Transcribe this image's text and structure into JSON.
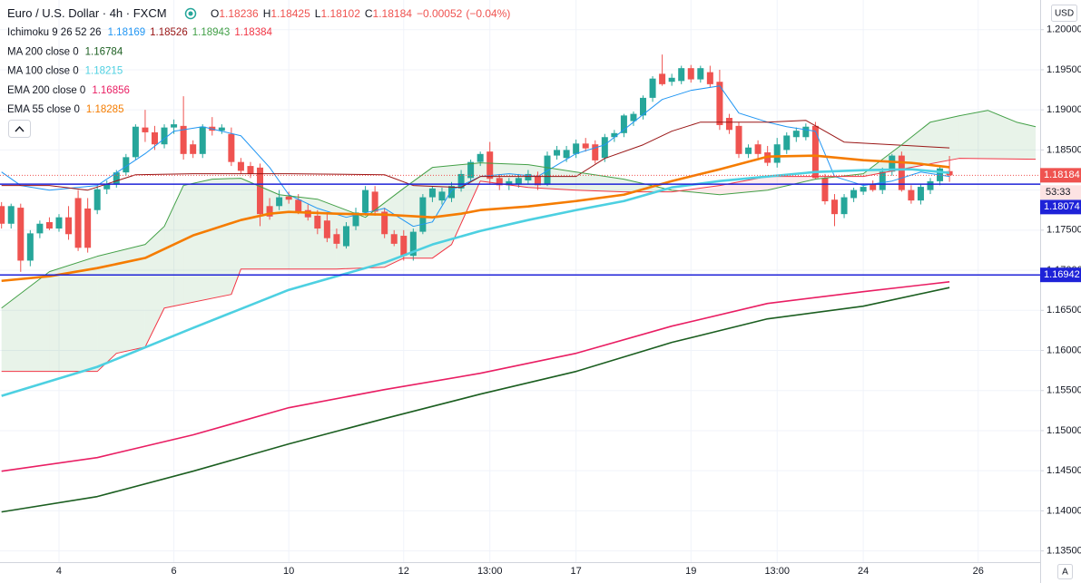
{
  "chart_data": {
    "type": "candlestick",
    "title": "Euro / U.S. Dollar · 4h · FXCM",
    "ohlc_labels": [
      "O",
      "H",
      "L",
      "C"
    ],
    "change": {
      "value": -0.00052,
      "label": "−0.00052"
    },
    "change_percent": {
      "value": -0.04,
      "label": "(−0.04%)"
    },
    "up_color": "#26a69a",
    "down_color": "#ef5350",
    "x": [
      0,
      1,
      2,
      3,
      4,
      5,
      6,
      7,
      8,
      9,
      10,
      11,
      12,
      13,
      14,
      15,
      16,
      17,
      18,
      19,
      20,
      21,
      22,
      23,
      24,
      25,
      26,
      27,
      28,
      29,
      30,
      31,
      32,
      33,
      34,
      35,
      36,
      37,
      38,
      39,
      40,
      41,
      42,
      43,
      44,
      45,
      46,
      47,
      48,
      49,
      50,
      51,
      52,
      53,
      54,
      55,
      56,
      57,
      58,
      59,
      60,
      61,
      62,
      63,
      64,
      65,
      66,
      67,
      68,
      69,
      70,
      71,
      72,
      73,
      74,
      75,
      76,
      77,
      78,
      79,
      80,
      81,
      82,
      83,
      84,
      85,
      86,
      87,
      88,
      89,
      90,
      91,
      92,
      93,
      94,
      95,
      96,
      97,
      98,
      99
    ],
    "open": [
      1.178,
      1.1758,
      1.1778,
      1.1712,
      1.1746,
      1.176,
      1.1752,
      1.1766,
      1.179,
      1.1777,
      1.1775,
      1.1801,
      1.1808,
      1.1822,
      1.1841,
      1.1878,
      1.1872,
      1.1857,
      1.1878,
      1.188,
      1.1857,
      1.1845,
      1.1879,
      1.1874,
      1.187,
      1.1835,
      1.183,
      1.1828,
      1.178,
      1.178,
      1.1792,
      1.1788,
      1.1775,
      1.1768,
      1.1762,
      1.1745,
      1.173,
      1.1755,
      1.1772,
      1.1798,
      1.1773,
      1.1745,
      1.1743,
      1.1718,
      1.1748,
      1.1791,
      1.1787,
      1.179,
      1.1802,
      1.1815,
      1.1835,
      1.1848,
      1.1815,
      1.1806,
      1.1808,
      1.1812,
      1.1818,
      1.1808,
      1.1843,
      1.184,
      1.1845,
      1.1858,
      1.1857,
      1.184,
      1.1866,
      1.1871,
      1.1886,
      1.1893,
      1.1915,
      1.1945,
      1.1935,
      1.1936,
      1.1952,
      1.1938,
      1.1947,
      1.1935,
      1.189,
      1.188,
      1.1845,
      1.1857,
      1.1847,
      1.1834,
      1.185,
      1.1866,
      1.1866,
      1.188,
      1.1815,
      1.1788,
      1.177,
      1.179,
      1.1798,
      1.1808,
      1.18,
      1.1823,
      1.1843,
      1.18,
      1.1787,
      1.18,
      1.1811,
      1.18236
    ],
    "high": [
      1.1785,
      1.1783,
      1.1783,
      1.175,
      1.1762,
      1.1766,
      1.177,
      1.178,
      1.18,
      1.179,
      1.1805,
      1.1812,
      1.1825,
      1.1845,
      1.1882,
      1.19,
      1.188,
      1.1882,
      1.1888,
      1.1917,
      1.1862,
      1.1882,
      1.1891,
      1.1882,
      1.1878,
      1.184,
      1.1835,
      1.1833,
      1.179,
      1.18,
      1.1798,
      1.1795,
      1.1782,
      1.1775,
      1.177,
      1.1752,
      1.176,
      1.1778,
      1.1805,
      1.1805,
      1.1778,
      1.175,
      1.175,
      1.1752,
      1.1795,
      1.1805,
      1.1803,
      1.181,
      1.1825,
      1.1838,
      1.1848,
      1.186,
      1.182,
      1.1815,
      1.182,
      1.1825,
      1.1823,
      1.1848,
      1.1855,
      1.1855,
      1.1863,
      1.1865,
      1.1862,
      1.187,
      1.1875,
      1.1895,
      1.1898,
      1.1918,
      1.1942,
      1.1969,
      1.1945,
      1.1955,
      1.1956,
      1.1955,
      1.1955,
      1.195,
      1.1895,
      1.1885,
      1.1857,
      1.1862,
      1.1855,
      1.1865,
      1.1872,
      1.1878,
      1.1883,
      1.1885,
      1.182,
      1.1795,
      1.1795,
      1.1803,
      1.1808,
      1.1812,
      1.1828,
      1.1845,
      1.1848,
      1.1806,
      1.1808,
      1.1815,
      1.183,
      1.18425
    ],
    "low": [
      1.1752,
      1.1752,
      1.1698,
      1.1705,
      1.174,
      1.175,
      1.1748,
      1.1738,
      1.1724,
      1.1722,
      1.177,
      1.1795,
      1.1803,
      1.1818,
      1.1838,
      1.186,
      1.185,
      1.1852,
      1.187,
      1.1838,
      1.184,
      1.184,
      1.1868,
      1.187,
      1.183,
      1.182,
      1.1815,
      1.1755,
      1.1763,
      1.1775,
      1.1783,
      1.177,
      1.1762,
      1.1745,
      1.1735,
      1.1727,
      1.1727,
      1.175,
      1.1768,
      1.1768,
      1.174,
      1.173,
      1.1712,
      1.1712,
      1.1745,
      1.1785,
      1.1782,
      1.1785,
      1.1798,
      1.181,
      1.183,
      1.1808,
      1.18,
      1.18,
      1.1803,
      1.1808,
      1.18,
      1.1805,
      1.1838,
      1.1835,
      1.184,
      1.1848,
      1.1833,
      1.1835,
      1.186,
      1.1866,
      1.188,
      1.1888,
      1.191,
      1.193,
      1.193,
      1.1932,
      1.1934,
      1.1934,
      1.1928,
      1.1875,
      1.187,
      1.184,
      1.184,
      1.184,
      1.183,
      1.1828,
      1.1845,
      1.186,
      1.1862,
      1.1813,
      1.1782,
      1.1755,
      1.1765,
      1.1785,
      1.1794,
      1.1798,
      1.1795,
      1.1818,
      1.1798,
      1.1783,
      1.1782,
      1.1795,
      1.1806,
      1.18102
    ],
    "close": [
      1.1758,
      1.178,
      1.1712,
      1.1746,
      1.1758,
      1.1752,
      1.1766,
      1.1745,
      1.1728,
      1.1728,
      1.1801,
      1.1808,
      1.1822,
      1.1841,
      1.1879,
      1.1872,
      1.1857,
      1.1878,
      1.1882,
      1.1845,
      1.1845,
      1.1879,
      1.1874,
      1.1878,
      1.1835,
      1.1824,
      1.182,
      1.177,
      1.1767,
      1.1791,
      1.1788,
      1.1773,
      1.1766,
      1.1752,
      1.174,
      1.1733,
      1.1755,
      1.1772,
      1.18,
      1.1773,
      1.1745,
      1.1733,
      1.1718,
      1.1748,
      1.1791,
      1.1802,
      1.1798,
      1.1805,
      1.182,
      1.1835,
      1.1845,
      1.1814,
      1.1806,
      1.1811,
      1.1815,
      1.182,
      1.1806,
      1.1843,
      1.185,
      1.185,
      1.1858,
      1.1852,
      1.1837,
      1.1866,
      1.1871,
      1.1893,
      1.1895,
      1.1915,
      1.1939,
      1.1932,
      1.194,
      1.1952,
      1.1938,
      1.1952,
      1.1932,
      1.1881,
      1.1875,
      1.1845,
      1.1853,
      1.1845,
      1.1834,
      1.1857,
      1.1868,
      1.1874,
      1.1879,
      1.1815,
      1.1786,
      1.177,
      1.1791,
      1.18,
      1.1804,
      1.18,
      1.1823,
      1.1843,
      1.18,
      1.1787,
      1.1804,
      1.1811,
      1.1827,
      1.18184
    ],
    "xlim": [
      -0.16,
      108.47
    ],
    "xticks": [
      {
        "value": 6,
        "label": "4"
      },
      {
        "value": 18,
        "label": "6"
      },
      {
        "value": 30,
        "label": "10"
      },
      {
        "value": 42,
        "label": "12"
      },
      {
        "value": 51,
        "label": "13:00"
      },
      {
        "value": 60,
        "label": "17"
      },
      {
        "value": 72,
        "label": "19"
      },
      {
        "value": 81,
        "label": "13:00"
      },
      {
        "value": 90,
        "label": "24"
      },
      {
        "value": 102,
        "label": "26"
      }
    ],
    "ylim": [
      1.1336,
      1.2037
    ],
    "yticks": [
      {
        "value": 1.135,
        "label": "1.13500"
      },
      {
        "value": 1.14,
        "label": "1.14000"
      },
      {
        "value": 1.145,
        "label": "1.14500"
      },
      {
        "value": 1.15,
        "label": "1.15000"
      },
      {
        "value": 1.155,
        "label": "1.15500"
      },
      {
        "value": 1.16,
        "label": "1.16000"
      },
      {
        "value": 1.165,
        "label": "1.16500"
      },
      {
        "value": 1.17,
        "label": "1.17000"
      },
      {
        "value": 1.175,
        "label": "1.17500"
      },
      {
        "value": 1.18,
        "label": "1.18000"
      },
      {
        "value": 1.185,
        "label": "1.18500"
      },
      {
        "value": 1.19,
        "label": "1.19000"
      },
      {
        "value": 1.195,
        "label": "1.19500"
      },
      {
        "value": 1.2,
        "label": "1.20000"
      }
    ],
    "grid": true,
    "currency": "USD",
    "countdown": "53:33",
    "scale_mode": "A",
    "horizontal_lines": [
      {
        "value": 1.18074,
        "color": "#1e22d8"
      },
      {
        "value": 1.16942,
        "color": "#1e22d8"
      }
    ],
    "ichimoku": {
      "label": "Ichimoku 9 26 52 26",
      "cloud_colors": [
        "rgba(67,160,71,0.12)",
        "rgba(242,54,69,0.10)"
      ],
      "lines": [
        {
          "color": "#2196f3",
          "legend_value": 1.18169,
          "x": [
            0,
            2,
            5,
            10,
            15,
            18,
            21,
            25,
            28,
            30,
            33,
            36,
            40,
            43,
            45,
            47,
            50,
            53,
            56,
            60,
            63,
            66,
            69,
            72,
            75,
            77,
            80,
            82,
            85,
            87,
            90,
            93,
            96,
            99
          ],
          "values": [
            1.18225,
            1.18057,
            1.17999,
            1.18057,
            1.18454,
            1.18734,
            1.1879,
            1.18677,
            1.18282,
            1.17942,
            1.17772,
            1.1766,
            1.17772,
            1.17547,
            1.17602,
            1.17999,
            1.18169,
            1.18203,
            1.18169,
            1.18454,
            1.18564,
            1.18847,
            1.1913,
            1.19243,
            1.19299,
            1.1896,
            1.18847,
            1.1879,
            1.18734,
            1.18169,
            1.18057,
            1.18112,
            1.18225,
            1.18169
          ]
        },
        {
          "color": "#991515",
          "legend_value": 1.18526,
          "x": [
            0,
            5,
            9,
            14,
            20,
            30,
            40,
            43,
            48,
            50,
            55,
            60,
            63,
            67,
            70,
            73,
            80,
            84,
            86,
            88,
            99
          ],
          "values": [
            1.18057,
            1.18057,
            1.17999,
            1.18191,
            1.18203,
            1.18203,
            1.18191,
            1.18057,
            1.18033,
            1.18169,
            1.18169,
            1.18169,
            1.18395,
            1.18564,
            1.18734,
            1.18847,
            1.18847,
            1.18869,
            1.18734,
            1.18598,
            1.18526
          ]
        },
        {
          "color": "#43a047",
          "legend_value": 1.18943,
          "x": [
            0,
            5,
            10,
            15,
            17,
            19,
            22,
            25,
            29,
            33,
            38,
            42,
            45,
            50,
            55,
            60,
            65,
            70,
            75,
            80,
            85,
            90,
            94,
            97,
            100,
            103,
            106,
            108
          ],
          "values": [
            1.16529,
            1.16982,
            1.17174,
            1.17321,
            1.17547,
            1.18057,
            1.18136,
            1.18147,
            1.17942,
            1.17886,
            1.1766,
            1.18022,
            1.18282,
            1.18339,
            1.18316,
            1.18225,
            1.18136,
            1.17999,
            1.17942,
            1.17999,
            1.18136,
            1.18203,
            1.18564,
            1.18847,
            1.18926,
            1.18994,
            1.18847,
            1.1879
          ]
        },
        {
          "color": "#f23645",
          "legend_value": 1.18384,
          "x": [
            0,
            10,
            12,
            15,
            17,
            24,
            25,
            35,
            40,
            42,
            45,
            47,
            50,
            55,
            60,
            65,
            70,
            75,
            80,
            85,
            90,
            95,
            100,
            108
          ],
          "values": [
            1.15738,
            1.15738,
            1.15964,
            1.16043,
            1.16529,
            1.16699,
            1.17015,
            1.17015,
            1.17038,
            1.17151,
            1.17151,
            1.17321,
            1.18112,
            1.18033,
            1.17999,
            1.17977,
            1.17977,
            1.18057,
            1.18169,
            1.18169,
            1.18169,
            1.18282,
            1.18395,
            1.18384
          ]
        }
      ]
    },
    "moving_averages": [
      {
        "label": "MA 200 close 0",
        "color": "#1b5e20",
        "width": 1.6,
        "legend_value": 1.16784,
        "x": [
          0,
          10,
          20,
          30,
          40,
          50,
          60,
          70,
          80,
          90,
          99
        ],
        "values": [
          1.13986,
          1.14178,
          1.14494,
          1.14834,
          1.1515,
          1.15455,
          1.15738,
          1.161,
          1.16394,
          1.16552,
          1.16784
        ]
      },
      {
        "label": "MA 100 close 0",
        "color": "#4dd0e1",
        "width": 2.6,
        "legend_value": 1.18215,
        "x": [
          0,
          10,
          20,
          30,
          40,
          45,
          50,
          55,
          60,
          65,
          70,
          75,
          80,
          85,
          90,
          95,
          99
        ],
        "values": [
          1.15433,
          1.15795,
          1.16281,
          1.16755,
          1.17095,
          1.17321,
          1.1749,
          1.17626,
          1.1775,
          1.17863,
          1.18033,
          1.18112,
          1.18169,
          1.18225,
          1.18248,
          1.18259,
          1.18215
        ]
      },
      {
        "label": "EMA 200 close 0",
        "color": "#e91e63",
        "width": 1.6,
        "legend_value": 1.16856,
        "x": [
          0,
          10,
          20,
          30,
          40,
          50,
          60,
          70,
          80,
          90,
          99
        ],
        "values": [
          1.14494,
          1.14664,
          1.14947,
          1.15286,
          1.15512,
          1.15715,
          1.15964,
          1.16303,
          1.16586,
          1.16733,
          1.16856
        ]
      },
      {
        "label": "EMA 55 close 0",
        "color": "#f57c00",
        "width": 2.6,
        "legend_value": 1.18285,
        "x": [
          0,
          5,
          10,
          15,
          20,
          25,
          28,
          30,
          35,
          40,
          45,
          48,
          50,
          55,
          60,
          65,
          70,
          75,
          80,
          85,
          90,
          95,
          99
        ],
        "values": [
          1.16868,
          1.16925,
          1.17027,
          1.17153,
          1.17434,
          1.17626,
          1.17705,
          1.17728,
          1.17705,
          1.17694,
          1.1766,
          1.17705,
          1.1775,
          1.17796,
          1.17863,
          1.17942,
          1.18112,
          1.18259,
          1.18417,
          1.18429,
          1.18372,
          1.18339,
          1.18285
        ]
      }
    ]
  }
}
